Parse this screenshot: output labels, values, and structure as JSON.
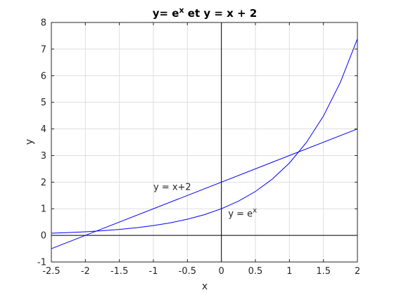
{
  "chart_data": {
    "type": "line",
    "title": {
      "prefix": "y= e",
      "sup": "x",
      "suffix": " et y = x + 2"
    },
    "xlabel": "x",
    "ylabel": "y",
    "xlim": [
      -2.5,
      2
    ],
    "ylim": [
      -1,
      8
    ],
    "xticks": [
      -2.5,
      -2,
      -1.5,
      -1,
      -0.5,
      0,
      0.5,
      1,
      1.5,
      2
    ],
    "yticks": [
      -1,
      0,
      1,
      2,
      3,
      4,
      5,
      6,
      7,
      8
    ],
    "xtick_labels": [
      "-2.5",
      "-2",
      "-1.5",
      "-1",
      "-0.5",
      "0",
      "0.5",
      "1",
      "1.5",
      "2"
    ],
    "ytick_labels": [
      "-1",
      "0",
      "1",
      "2",
      "3",
      "4",
      "5",
      "6",
      "7",
      "8"
    ],
    "grid": true,
    "series": [
      {
        "color": "#0000ff",
        "x": [
          -2.5,
          -2.25,
          -2,
          -1.75,
          -1.5,
          -1.25,
          -1,
          -0.75,
          -0.5,
          -0.25,
          0,
          0.25,
          0.5,
          0.75,
          1,
          1.25,
          1.5,
          1.75,
          2
        ],
        "y": [
          0.082,
          0.105,
          0.135,
          0.174,
          0.223,
          0.287,
          0.368,
          0.472,
          0.607,
          0.779,
          1.0,
          1.284,
          1.649,
          2.117,
          2.718,
          3.49,
          4.482,
          5.755,
          7.389
        ]
      },
      {
        "color": "#0000ff",
        "x": [
          -2.5,
          2
        ],
        "y": [
          -0.5,
          4
        ]
      }
    ],
    "reference_lines": {
      "x_axis_at": 0,
      "y_axis_at": 0,
      "color": "#000000"
    },
    "annotations": [
      {
        "text": "y = x+2",
        "x": -1.0,
        "y": 1.7
      },
      {
        "text": "y = e",
        "sup": "x",
        "x": 0.1,
        "y": 0.7
      }
    ]
  }
}
